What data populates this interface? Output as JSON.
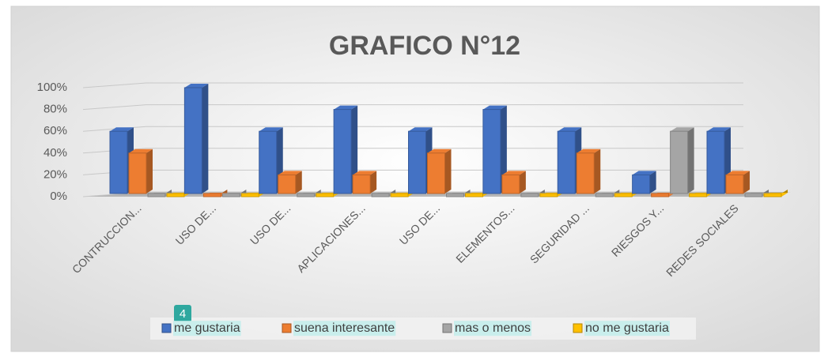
{
  "chart_data": {
    "type": "bar3d",
    "title": "GRAFICO N°12",
    "categories": [
      "CONTRUCCION...",
      "USO DE...",
      "USO DE...",
      "APLICACIONES...",
      "USO DE...",
      "ELEMENTOS...",
      "SEGURIDAD ...",
      "RIESGOS Y...",
      "REDES SOCIALES"
    ],
    "series": [
      {
        "name": "me gustaria",
        "color": "#4472c4",
        "values": [
          60,
          100,
          60,
          80,
          60,
          80,
          60,
          20,
          60
        ]
      },
      {
        "name": "suena interesante",
        "color": "#ed7d31",
        "values": [
          40,
          0,
          20,
          20,
          40,
          20,
          40,
          0,
          20
        ]
      },
      {
        "name": "mas o menos",
        "color": "#a5a5a5",
        "values": [
          0,
          0,
          0,
          0,
          0,
          0,
          0,
          60,
          0
        ]
      },
      {
        "name": "no me gustaria",
        "color": "#ffc000",
        "values": [
          0,
          0,
          0,
          0,
          0,
          0,
          0,
          0,
          0
        ]
      }
    ],
    "ylim": [
      0,
      100
    ],
    "yticks": [
      {
        "value": 0,
        "label": "0%"
      },
      {
        "value": 20,
        "label": "20%"
      },
      {
        "value": 40,
        "label": "40%"
      },
      {
        "value": 60,
        "label": "60%"
      },
      {
        "value": 80,
        "label": "80%"
      },
      {
        "value": 100,
        "label": "100%"
      }
    ],
    "grid": true,
    "legend": "bottom",
    "annotation": "4"
  }
}
